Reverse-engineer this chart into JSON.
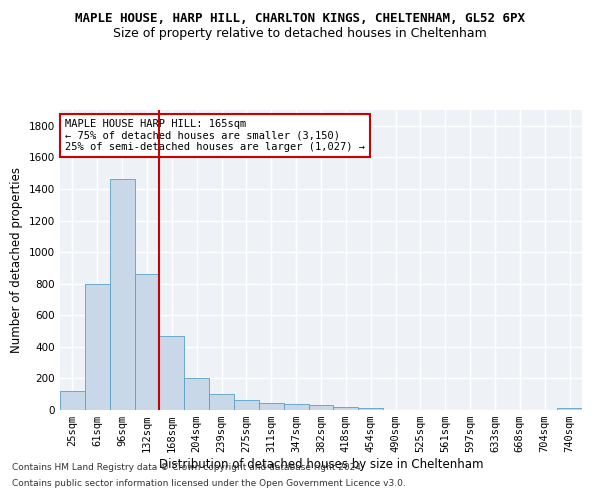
{
  "title": "MAPLE HOUSE, HARP HILL, CHARLTON KINGS, CHELTENHAM, GL52 6PX",
  "subtitle": "Size of property relative to detached houses in Cheltenham",
  "xlabel": "Distribution of detached houses by size in Cheltenham",
  "ylabel": "Number of detached properties",
  "categories": [
    "25sqm",
    "61sqm",
    "96sqm",
    "132sqm",
    "168sqm",
    "204sqm",
    "239sqm",
    "275sqm",
    "311sqm",
    "347sqm",
    "382sqm",
    "418sqm",
    "454sqm",
    "490sqm",
    "525sqm",
    "561sqm",
    "597sqm",
    "633sqm",
    "668sqm",
    "704sqm",
    "740sqm"
  ],
  "values": [
    120,
    800,
    1460,
    860,
    470,
    200,
    100,
    65,
    45,
    35,
    30,
    22,
    10,
    0,
    0,
    0,
    0,
    0,
    0,
    0,
    10
  ],
  "bar_color": "#c8d8e8",
  "bar_edge_color": "#5a9fc8",
  "vline_color": "#cc0000",
  "vline_index": 3.5,
  "annotation_text": "MAPLE HOUSE HARP HILL: 165sqm\n← 75% of detached houses are smaller (3,150)\n25% of semi-detached houses are larger (1,027) →",
  "annotation_box_color": "#cc0000",
  "ylim": [
    0,
    1900
  ],
  "yticks": [
    0,
    200,
    400,
    600,
    800,
    1000,
    1200,
    1400,
    1600,
    1800
  ],
  "footer1": "Contains HM Land Registry data © Crown copyright and database right 2024.",
  "footer2": "Contains public sector information licensed under the Open Government Licence v3.0.",
  "background_color": "#eef2f7",
  "grid_color": "#ffffff",
  "title_fontsize": 9,
  "subtitle_fontsize": 9,
  "axis_label_fontsize": 8.5,
  "tick_fontsize": 7.5,
  "annotation_fontsize": 7.5,
  "footer_fontsize": 6.5
}
